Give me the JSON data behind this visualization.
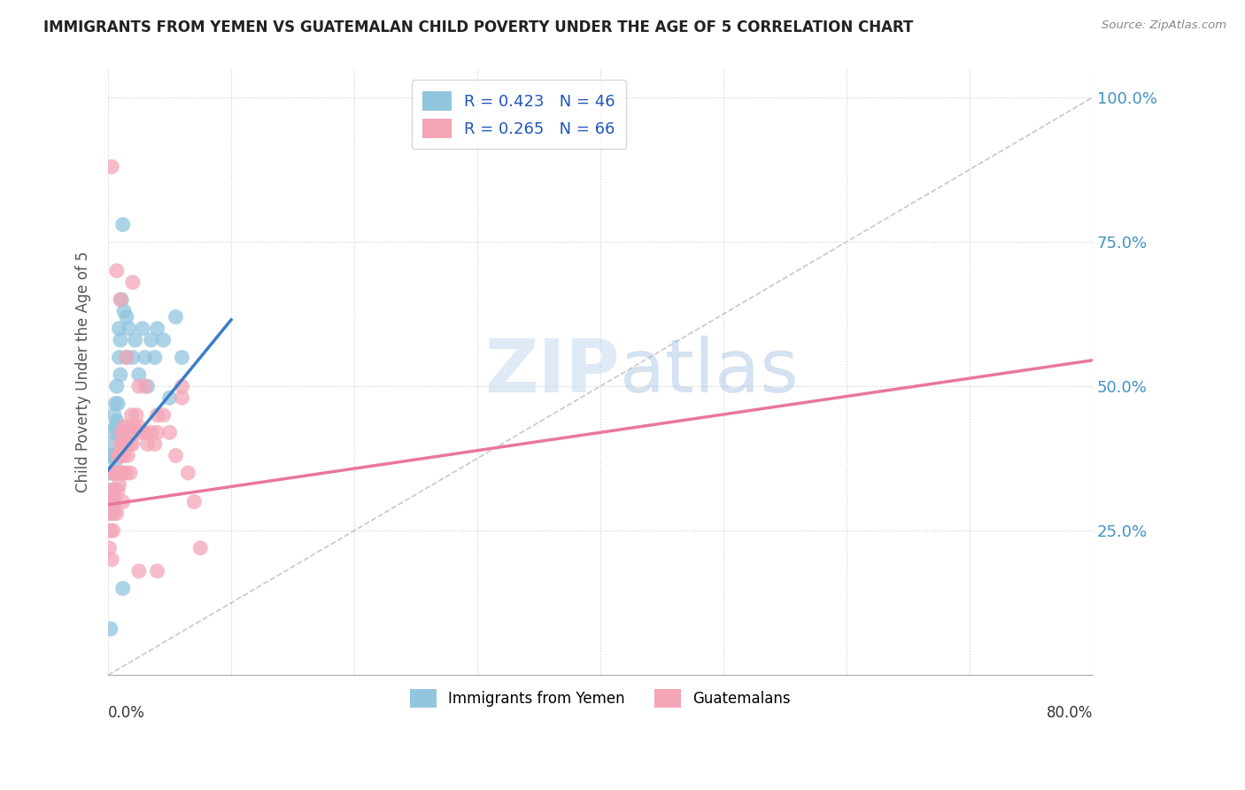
{
  "title": "IMMIGRANTS FROM YEMEN VS GUATEMALAN CHILD POVERTY UNDER THE AGE OF 5 CORRELATION CHART",
  "source": "Source: ZipAtlas.com",
  "ylabel": "Child Poverty Under the Age of 5",
  "ytick_labels": [
    "",
    "25.0%",
    "50.0%",
    "75.0%",
    "100.0%"
  ],
  "yticks": [
    0.0,
    0.25,
    0.5,
    0.75,
    1.0
  ],
  "xmin": 0.0,
  "xmax": 0.8,
  "ymin": 0.0,
  "ymax": 1.05,
  "watermark_zip": "ZIP",
  "watermark_atlas": "atlas",
  "legend_r1": "R = 0.423",
  "legend_n1": "N = 46",
  "legend_r2": "R = 0.265",
  "legend_n2": "N = 66",
  "legend_label1": "Immigrants from Yemen",
  "legend_label2": "Guatemalans",
  "color_blue": "#92C5DE",
  "color_pink": "#F4A6B8",
  "color_blue_line": "#3A7EC6",
  "color_pink_line": "#E8789A",
  "color_diag": "#C8C8C8",
  "blue_line_x0": 0.0,
  "blue_line_y0": 0.355,
  "blue_line_x1": 0.1,
  "blue_line_y1": 0.615,
  "pink_line_x0": 0.0,
  "pink_line_y0": 0.295,
  "pink_line_x1": 0.8,
  "pink_line_y1": 0.545,
  "scatter_blue_x": [
    0.001,
    0.001,
    0.002,
    0.002,
    0.002,
    0.003,
    0.003,
    0.003,
    0.004,
    0.004,
    0.004,
    0.005,
    0.005,
    0.005,
    0.006,
    0.006,
    0.006,
    0.007,
    0.007,
    0.008,
    0.008,
    0.009,
    0.009,
    0.01,
    0.01,
    0.011,
    0.012,
    0.013,
    0.015,
    0.015,
    0.017,
    0.02,
    0.022,
    0.025,
    0.028,
    0.03,
    0.032,
    0.035,
    0.038,
    0.04,
    0.045,
    0.05,
    0.055,
    0.06,
    0.002,
    0.012
  ],
  "scatter_blue_y": [
    0.3,
    0.35,
    0.28,
    0.32,
    0.38,
    0.3,
    0.35,
    0.4,
    0.38,
    0.42,
    0.35,
    0.32,
    0.45,
    0.38,
    0.37,
    0.43,
    0.47,
    0.44,
    0.5,
    0.42,
    0.47,
    0.55,
    0.6,
    0.52,
    0.58,
    0.65,
    0.78,
    0.63,
    0.55,
    0.62,
    0.6,
    0.55,
    0.58,
    0.52,
    0.6,
    0.55,
    0.5,
    0.58,
    0.55,
    0.6,
    0.58,
    0.48,
    0.62,
    0.55,
    0.08,
    0.15
  ],
  "scatter_pink_x": [
    0.001,
    0.001,
    0.002,
    0.002,
    0.003,
    0.003,
    0.003,
    0.004,
    0.004,
    0.005,
    0.005,
    0.005,
    0.006,
    0.006,
    0.007,
    0.007,
    0.008,
    0.008,
    0.009,
    0.009,
    0.01,
    0.01,
    0.011,
    0.011,
    0.012,
    0.012,
    0.013,
    0.013,
    0.014,
    0.015,
    0.015,
    0.016,
    0.017,
    0.018,
    0.019,
    0.02,
    0.021,
    0.022,
    0.023,
    0.025,
    0.027,
    0.03,
    0.032,
    0.035,
    0.038,
    0.04,
    0.045,
    0.05,
    0.055,
    0.06,
    0.065,
    0.07,
    0.01,
    0.015,
    0.02,
    0.025,
    0.03,
    0.04,
    0.06,
    0.075,
    0.003,
    0.007,
    0.012,
    0.018,
    0.025,
    0.04
  ],
  "scatter_pink_y": [
    0.22,
    0.28,
    0.25,
    0.3,
    0.2,
    0.28,
    0.32,
    0.25,
    0.35,
    0.28,
    0.3,
    0.32,
    0.3,
    0.35,
    0.28,
    0.35,
    0.32,
    0.38,
    0.33,
    0.38,
    0.35,
    0.4,
    0.38,
    0.42,
    0.35,
    0.4,
    0.38,
    0.43,
    0.4,
    0.35,
    0.42,
    0.38,
    0.43,
    0.4,
    0.45,
    0.4,
    0.43,
    0.42,
    0.45,
    0.43,
    0.42,
    0.42,
    0.4,
    0.42,
    0.4,
    0.42,
    0.45,
    0.42,
    0.38,
    0.48,
    0.35,
    0.3,
    0.65,
    0.55,
    0.68,
    0.5,
    0.5,
    0.45,
    0.5,
    0.22,
    0.88,
    0.7,
    0.3,
    0.35,
    0.18,
    0.18
  ]
}
